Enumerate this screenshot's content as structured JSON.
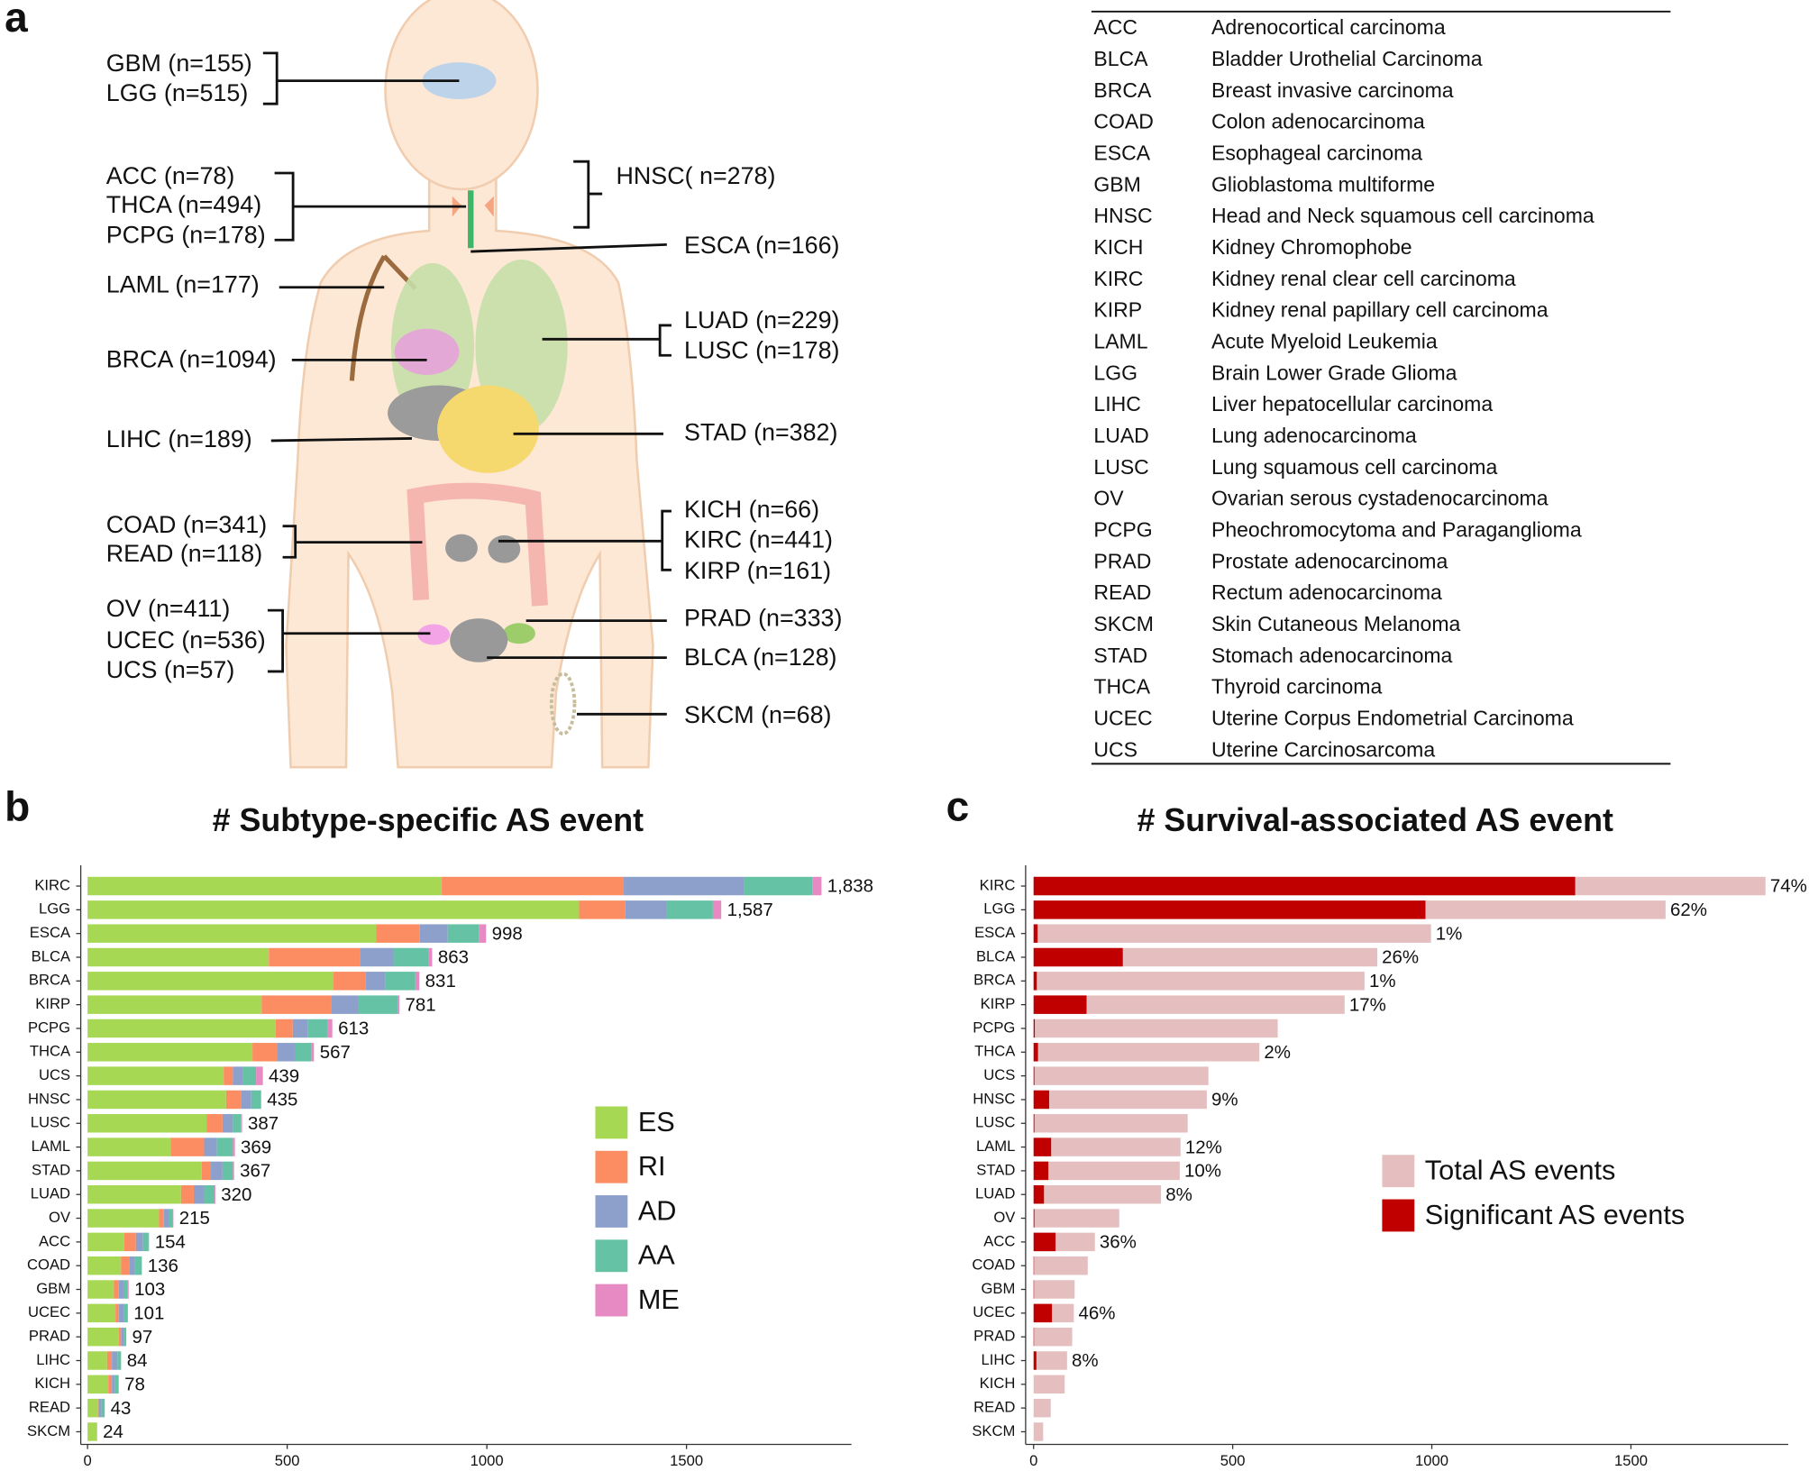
{
  "panel_labels": [
    "a",
    "b",
    "c"
  ],
  "panel_a": {
    "labels": [
      "GBM (n=155)",
      "LGG (n=515)",
      "ACC (n=78)",
      "THCA (n=494)",
      "PCPG (n=178)",
      "HNSC( n=278)",
      "ESCA (n=166)",
      "LAML (n=177)",
      "LUAD (n=229)",
      "LUSC (n=178)",
      "BRCA (n=1094)",
      "LIHC (n=189)",
      "STAD (n=382)",
      "COAD (n=341)",
      "READ (n=118)",
      "KICH (n=66)",
      "KIRC (n=441)",
      "KIRP (n=161)",
      "OV (n=411)",
      "UCEC (n=536)",
      "UCS (n=57)",
      "PRAD (n=333)",
      "BLCA (n=128)",
      "SKCM (n=68)"
    ],
    "table": {
      "rows": [
        [
          "ACC",
          "Adrenocortical carcinoma"
        ],
        [
          "BLCA",
          "Bladder Urothelial Carcinoma"
        ],
        [
          "BRCA",
          "Breast invasive carcinoma"
        ],
        [
          "COAD",
          "Colon adenocarcinoma"
        ],
        [
          "ESCA",
          "Esophageal carcinoma"
        ],
        [
          "GBM",
          "Glioblastoma multiforme"
        ],
        [
          "HNSC",
          "Head and Neck squamous cell carcinoma"
        ],
        [
          "KICH",
          "Kidney Chromophobe"
        ],
        [
          "KIRC",
          "Kidney renal clear cell carcinoma"
        ],
        [
          "KIRP",
          "Kidney renal papillary cell carcinoma"
        ],
        [
          "LAML",
          "Acute Myeloid Leukemia"
        ],
        [
          "LGG",
          "Brain Lower Grade Glioma"
        ],
        [
          "LIHC",
          "Liver hepatocellular carcinoma"
        ],
        [
          "LUAD",
          "Lung adenocarcinoma"
        ],
        [
          "LUSC",
          "Lung squamous cell carcinoma"
        ],
        [
          "OV",
          "Ovarian serous cystadenocarcinoma"
        ],
        [
          "PCPG",
          "Pheochromocytoma and Paraganglioma"
        ],
        [
          "PRAD",
          "Prostate adenocarcinoma"
        ],
        [
          "READ",
          "Rectum adenocarcinoma"
        ],
        [
          "SKCM",
          "Skin Cutaneous Melanoma"
        ],
        [
          "STAD",
          "Stomach adenocarcinoma"
        ],
        [
          "THCA",
          "Thyroid carcinoma"
        ],
        [
          "UCEC",
          "Uterine Corpus Endometrial Carcinoma"
        ],
        [
          "UCS",
          "Uterine Carcinosarcoma"
        ]
      ]
    }
  },
  "chart_data": [
    {
      "type": "bar",
      "orientation": "horizontal",
      "barmode": "stack",
      "title": "# Subtype-specific AS event",
      "categories": [
        "KIRC",
        "LGG",
        "ESCA",
        "BLCA",
        "BRCA",
        "KIRP",
        "PCPG",
        "THCA",
        "UCS",
        "HNSC",
        "LUSC",
        "LAML",
        "STAD",
        "LUAD",
        "OV",
        "ACC",
        "COAD",
        "GBM",
        "UCEC",
        "PRAD",
        "LIHC",
        "KICH",
        "READ",
        "SKCM"
      ],
      "series": [
        {
          "name": "ES",
          "color": "#a6d854",
          "values": [
            887,
            1231,
            723,
            454,
            616,
            436,
            471,
            413,
            341,
            347,
            298,
            208,
            286,
            234,
            179,
            92,
            84,
            66,
            70,
            78,
            49,
            52,
            26,
            24
          ]
        },
        {
          "name": "RI",
          "color": "#fc8d62",
          "values": [
            454,
            116,
            109,
            228,
            81,
            174,
            43,
            61,
            23,
            37,
            40,
            84,
            23,
            32,
            12,
            29,
            20,
            12,
            8,
            6,
            12,
            9,
            3,
            0
          ]
        },
        {
          "name": "AD",
          "color": "#8da0cb",
          "values": [
            304,
            104,
            70,
            84,
            49,
            69,
            38,
            46,
            26,
            26,
            26,
            32,
            29,
            26,
            14,
            18,
            14,
            12,
            14,
            8,
            14,
            8,
            6,
            0
          ]
        },
        {
          "name": "AA",
          "color": "#66c2a5",
          "values": [
            170,
            115,
            78,
            87,
            75,
            98,
            49,
            41,
            32,
            24,
            20,
            40,
            26,
            26,
            9,
            14,
            18,
            11,
            9,
            5,
            9,
            9,
            8,
            0
          ]
        },
        {
          "name": "ME",
          "color": "#e78ac3",
          "values": [
            23,
            21,
            18,
            10,
            10,
            4,
            12,
            6,
            17,
            1,
            3,
            5,
            3,
            2,
            1,
            1,
            0,
            2,
            0,
            0,
            0,
            0,
            0,
            0
          ]
        }
      ],
      "totals": [
        1838,
        1587,
        998,
        863,
        831,
        781,
        613,
        567,
        439,
        435,
        387,
        369,
        367,
        320,
        215,
        154,
        136,
        103,
        101,
        97,
        84,
        78,
        43,
        24
      ],
      "total_labels": [
        "1,838",
        "1,587",
        "998",
        "863",
        "831",
        "781",
        "613",
        "567",
        "439",
        "435",
        "387",
        "369",
        "367",
        "320",
        "215",
        "154",
        "136",
        "103",
        "101",
        "97",
        "84",
        "78",
        "43",
        "24"
      ],
      "xlim": [
        -17,
        1913
      ],
      "xticks": [
        0,
        500,
        1000,
        1500
      ],
      "legend": "center right"
    },
    {
      "type": "bar",
      "orientation": "horizontal",
      "barmode": "overlay",
      "title": "# Survival-associated AS event",
      "categories": [
        "KIRC",
        "LGG",
        "ESCA",
        "BLCA",
        "BRCA",
        "KIRP",
        "PCPG",
        "THCA",
        "UCS",
        "HNSC",
        "LUSC",
        "LAML",
        "STAD",
        "LUAD",
        "OV",
        "ACC",
        "COAD",
        "GBM",
        "UCEC",
        "PRAD",
        "LIHC",
        "KICH",
        "READ",
        "SKCM"
      ],
      "series": [
        {
          "name": "Total AS events",
          "color": "#e5bfbf",
          "values": [
            1838,
            1587,
            998,
            863,
            831,
            781,
            613,
            567,
            439,
            435,
            387,
            369,
            367,
            320,
            215,
            154,
            136,
            103,
            101,
            97,
            84,
            78,
            43,
            24
          ]
        },
        {
          "name": "Significant AS events",
          "color": "#c00000",
          "values": [
            1360,
            984,
            10,
            224,
            8,
            133,
            3,
            11,
            2,
            39,
            2,
            44,
            37,
            26,
            2,
            55,
            1,
            1,
            46,
            1,
            7,
            0,
            0,
            0
          ],
          "value_labels": [
            "74%",
            "62%",
            "1%",
            "26%",
            "1%",
            "17%",
            null,
            "2%",
            null,
            "9%",
            null,
            "12%",
            "10%",
            "8%",
            null,
            "36%",
            null,
            null,
            "46%",
            null,
            "8%",
            null,
            null,
            null
          ]
        }
      ],
      "xlim": [
        -20,
        1895
      ],
      "xticks": [
        0,
        500,
        1000,
        1500
      ],
      "legend": "center right"
    }
  ]
}
